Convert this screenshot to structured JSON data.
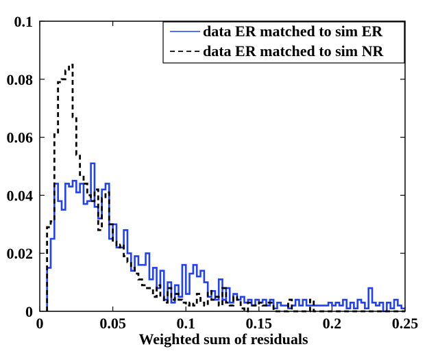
{
  "chart_data": {
    "type": "line",
    "subtype": "step-histogram",
    "title": "",
    "xlabel": "Weighted sum of residuals",
    "ylabel": "",
    "xlim": [
      0,
      0.25
    ],
    "ylim": [
      0,
      0.1
    ],
    "xticks": [
      0,
      0.05,
      0.1,
      0.15,
      0.2,
      0.25
    ],
    "xtick_labels": [
      "0",
      "0.05",
      "0.1",
      "0.15",
      "0.2",
      "0.25"
    ],
    "yticks": [
      0,
      0.02,
      0.04,
      0.06,
      0.08,
      0.1
    ],
    "ytick_labels": [
      "0",
      "0.02",
      "0.04",
      "0.06",
      "0.08",
      "0.1"
    ],
    "grid": false,
    "legend_position": "top-right",
    "bin_edges": [
      0.005,
      0.0075,
      0.01,
      0.0125,
      0.015,
      0.0175,
      0.02,
      0.0225,
      0.025,
      0.0275,
      0.03,
      0.0325,
      0.035,
      0.0375,
      0.04,
      0.0425,
      0.045,
      0.0475,
      0.05,
      0.0525,
      0.055,
      0.0575,
      0.06,
      0.0625,
      0.065,
      0.0675,
      0.07,
      0.0725,
      0.075,
      0.0775,
      0.08,
      0.0825,
      0.085,
      0.0875,
      0.09,
      0.0925,
      0.095,
      0.0975,
      0.1,
      0.1025,
      0.105,
      0.1075,
      0.11,
      0.1125,
      0.115,
      0.1175,
      0.12,
      0.1225,
      0.125,
      0.1275,
      0.13,
      0.1325,
      0.135,
      0.1375,
      0.14,
      0.1425,
      0.145,
      0.1475,
      0.15,
      0.1525,
      0.155,
      0.1575,
      0.16,
      0.1625,
      0.165,
      0.1675,
      0.17,
      0.1725,
      0.175,
      0.1775,
      0.18,
      0.1825,
      0.185,
      0.1875,
      0.19,
      0.1925,
      0.195,
      0.1975,
      0.2,
      0.2025,
      0.205,
      0.2075,
      0.21,
      0.2125,
      0.215,
      0.2175,
      0.22,
      0.2225,
      0.225,
      0.2275,
      0.23,
      0.2325,
      0.235,
      0.2375,
      0.24,
      0.2425,
      0.245,
      0.2475,
      0.25
    ],
    "series": [
      {
        "name": "data ER matched to sim ER",
        "color": "#1f3fff",
        "style": "solid",
        "values": [
          0.015,
          0.025,
          0.044,
          0.038,
          0.035,
          0.044,
          0.043,
          0.045,
          0.041,
          0.044,
          0.037,
          0.038,
          0.051,
          0.036,
          0.032,
          0.042,
          0.044,
          0.025,
          0.03,
          0.022,
          0.022,
          0.028,
          0.02,
          0.014,
          0.019,
          0.016,
          0.016,
          0.02,
          0.011,
          0.015,
          0.008,
          0.014,
          0.004,
          0.01,
          0.003,
          0.009,
          0.005,
          0.016,
          0.006,
          0.013,
          0.016,
          0.012,
          0.014,
          0.01,
          0.005,
          0.007,
          0.004,
          0.011,
          0.004,
          0.008,
          0.003,
          0.006,
          0.004,
          0.005,
          0.003,
          0.004,
          0.002,
          0.004,
          0.003,
          0.004,
          0.002,
          0.004,
          0.001,
          0.003,
          0.002,
          0.002,
          0.001,
          0.002,
          0.004,
          0.002,
          0.004,
          0.002,
          0.002,
          0.002,
          0.002,
          0.002,
          0.002,
          0.003,
          0.002,
          0.003,
          0.002,
          0.004,
          0.001,
          0.003,
          0.001,
          0.004,
          0.003,
          0.001,
          0.008,
          0.003,
          0.002,
          0.003,
          0.0,
          0.003,
          0.001,
          0.004,
          0.002,
          0.001
        ]
      },
      {
        "name": "data ER matched to sim NR",
        "color": "#000000",
        "style": "dashed",
        "values": [
          0.029,
          0.031,
          0.061,
          0.079,
          0.08,
          0.083,
          0.085,
          0.067,
          0.054,
          0.047,
          0.044,
          0.04,
          0.038,
          0.042,
          0.028,
          0.039,
          0.041,
          0.03,
          0.024,
          0.022,
          0.023,
          0.019,
          0.017,
          0.015,
          0.013,
          0.011,
          0.009,
          0.008,
          0.008,
          0.005,
          0.009,
          0.005,
          0.003,
          0.008,
          0.004,
          0.006,
          0.004,
          0.003,
          0.002,
          0.003,
          0.002,
          0.006,
          0.003,
          0.002,
          0.007,
          0.004,
          0.005,
          0.002,
          0.008,
          0.003,
          0.002,
          0.005,
          0.004,
          0.001,
          0.0,
          0.003,
          0.002,
          0.002,
          0.003,
          0.002,
          0.003,
          0.003,
          0.0,
          0.0,
          0.0,
          0.0,
          0.004,
          0.0,
          0.0,
          0.0,
          0.0,
          0.0,
          0.004,
          0.0,
          0.0,
          0.0,
          0.0,
          0.0,
          0.0,
          0.0,
          0.0,
          0.0,
          0.0,
          0.0,
          0.0,
          0.0,
          0.0,
          0.0,
          0.0,
          0.0,
          0.0,
          0.0,
          0.0,
          0.0,
          0.0,
          0.0,
          0.0,
          0.0
        ]
      }
    ]
  }
}
